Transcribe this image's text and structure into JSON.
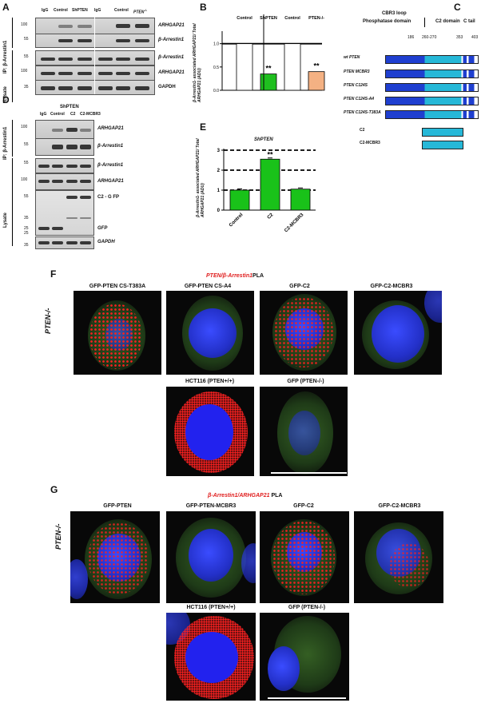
{
  "panels": {
    "A": "A",
    "B": "B",
    "C": "C",
    "D": "D",
    "E": "E",
    "F": "F",
    "G": "G"
  },
  "panelA": {
    "lanes_left": [
      "IgG",
      "Control",
      "ShPTEN"
    ],
    "lanes_left_italic_part": "PTEN",
    "lanes_right": [
      "IgG",
      "Control",
      "PTEN"
    ],
    "lanes_right_sup": "-/-",
    "ip_label": "IP: β-Arrestin1",
    "lysate_label": "Lysate",
    "mw": [
      "100",
      "55",
      "55",
      "100",
      "35"
    ],
    "rows": [
      "ARHGAP21",
      "β-Arrestin1",
      "β-Arrestin1",
      "ARHGAP21",
      "GAPDH"
    ]
  },
  "panelB": {
    "ylabel": "β-Arrestin1- associated ARHGAP21/ Total ARHGAP21 (ADU)",
    "yticks": [
      "0.0",
      "0.5",
      "1.0"
    ],
    "groups": [
      "Control",
      "ShPTEN",
      "Control",
      "PTEN-/-"
    ],
    "sig": [
      "**",
      "**"
    ]
  },
  "chart_data": {
    "type": "bar",
    "title": "ShPTEN",
    "categories": [
      "Control",
      "C2",
      "C2-MCBR3"
    ],
    "values": [
      1.0,
      2.55,
      1.05
    ],
    "ylabel": "β-Arrestin1- associated ARHGAP21/ Total ARHGAP21 (ADU)",
    "xlabel": "",
    "ylim": [
      0,
      3
    ],
    "yticks": [
      "0",
      "1",
      "2",
      "3"
    ],
    "significance": "**",
    "bar_color": "#19c219"
  },
  "panelB_data": {
    "values": [
      1.0,
      0.35,
      1.0,
      0.4
    ],
    "ylim": [
      0,
      1.2
    ],
    "colors": [
      "#ffffff",
      "#1fbf1f",
      "#ffffff",
      "#f4b183"
    ]
  },
  "panelC": {
    "top_labels": [
      "CBR3 loop",
      "Phosphatase domain",
      "C2 domain",
      "C tail"
    ],
    "positions": [
      "186",
      "260-270",
      "353",
      "403"
    ],
    "constructs": [
      "wt PTEN",
      "PTEN MCBR3",
      "PTEN C124S",
      "PTEN C124S-A4",
      "PTEN C124S-T383A",
      "C2",
      "C2-MCBR3"
    ]
  },
  "panelD": {
    "title": "ShPTEN",
    "lanes": [
      "IgG",
      "Control",
      "C2",
      "C2-MCBR3"
    ],
    "ip_label": "IP: β-Arrestin1",
    "lysate_label": "Lysate",
    "mw": [
      "100",
      "55",
      "55",
      "100",
      "55",
      "35",
      "25",
      "25",
      "35"
    ],
    "rows": [
      "ARHGAP21",
      "β-Arrestin1",
      "β-Arrestin1",
      "ARHGAP21",
      "C2 - G FP",
      "GFP",
      "GAPDH"
    ]
  },
  "panelE": {
    "title": "ShPTEN"
  },
  "panelF": {
    "title_red": "PTEN/β-Arrestin1",
    "title_black": "PLA",
    "row_label": "PTEN-/-",
    "captions": [
      "GFP-PTEN CS-T383A",
      "GFP-PTEN CS-A4",
      "GFP-C2",
      "GFP-C2-MCBR3",
      "HCT116 (PTEN+/+)",
      "GFP (PTEN-/-)"
    ]
  },
  "panelG": {
    "title_red": "β-Arrestin1/ARHGAP21",
    "title_black": "PLA",
    "row_label": "PTEN-/-",
    "captions": [
      "GFP-PTEN",
      "GFP-PTEN-MCBR3",
      "GFP-C2",
      "GFP-C2-MCBR3",
      "HCT116 (PTEN+/+)",
      "GFP (PTEN-/-)"
    ]
  }
}
